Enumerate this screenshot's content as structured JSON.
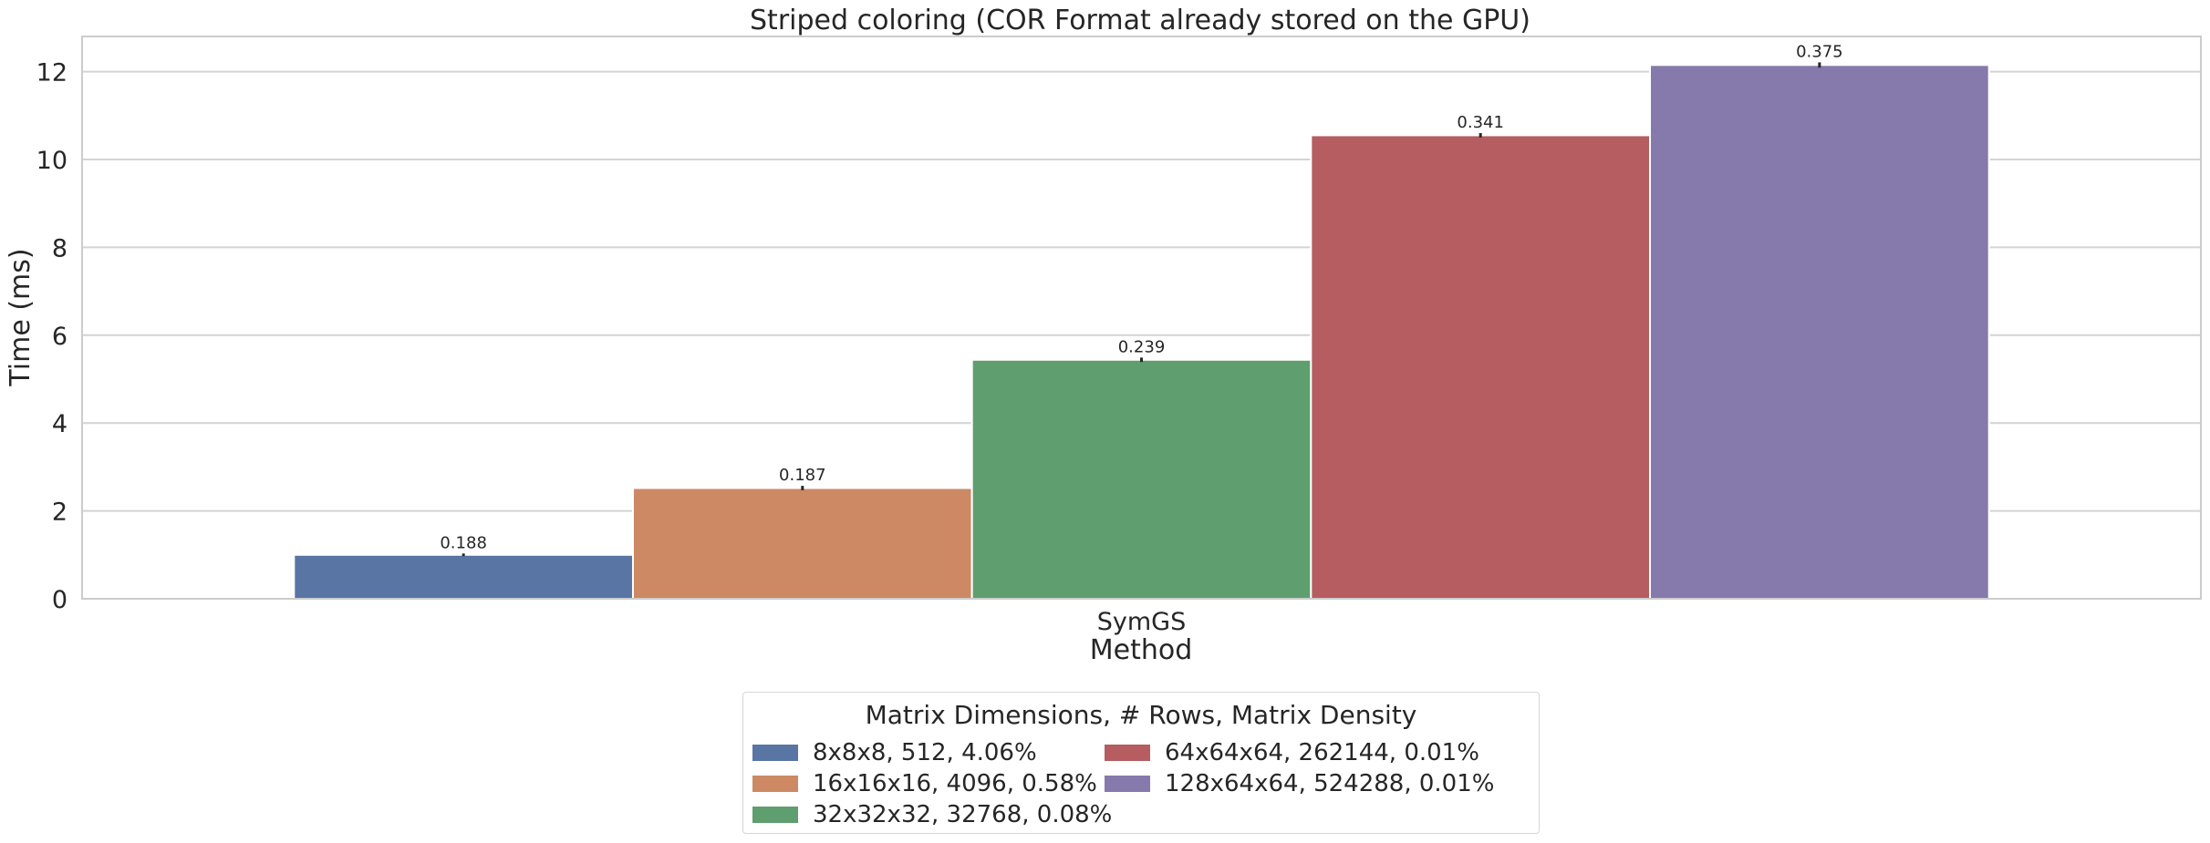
{
  "chart_data": {
    "type": "bar",
    "title": "Striped coloring (COR Format already stored on the GPU)",
    "xlabel": "Method",
    "ylabel": "Time (ms)",
    "categories": [
      "SymGS"
    ],
    "ylim": [
      0,
      12.8
    ],
    "yticks": [
      0,
      2,
      4,
      6,
      8,
      10,
      12
    ],
    "grid": true,
    "legend": {
      "title": "Matrix Dimensions, # Rows, Matrix Density",
      "placement": "bottom-center, outside plot"
    },
    "series": [
      {
        "name": "8x8x8, 512, 4.06%",
        "values": [
          1.0
        ],
        "error": [
          0.03
        ],
        "data_label": "0.188",
        "color": "#5875a4"
      },
      {
        "name": "16x16x16, 4096, 0.58%",
        "values": [
          2.52
        ],
        "error": [
          0.05
        ],
        "data_label": "0.187",
        "color": "#cc8963"
      },
      {
        "name": "32x32x32, 32768, 0.08%",
        "values": [
          5.44
        ],
        "error": [
          0.05
        ],
        "data_label": "0.239",
        "color": "#5f9e6e"
      },
      {
        "name": "64x64x64, 262144, 0.01%",
        "values": [
          10.55
        ],
        "error": [
          0.05
        ],
        "data_label": "0.341",
        "color": "#b55d60"
      },
      {
        "name": "128x64x64, 524288, 0.01%",
        "values": [
          12.15
        ],
        "error": [
          0.06
        ],
        "data_label": "0.375",
        "color": "#857aab"
      }
    ]
  }
}
